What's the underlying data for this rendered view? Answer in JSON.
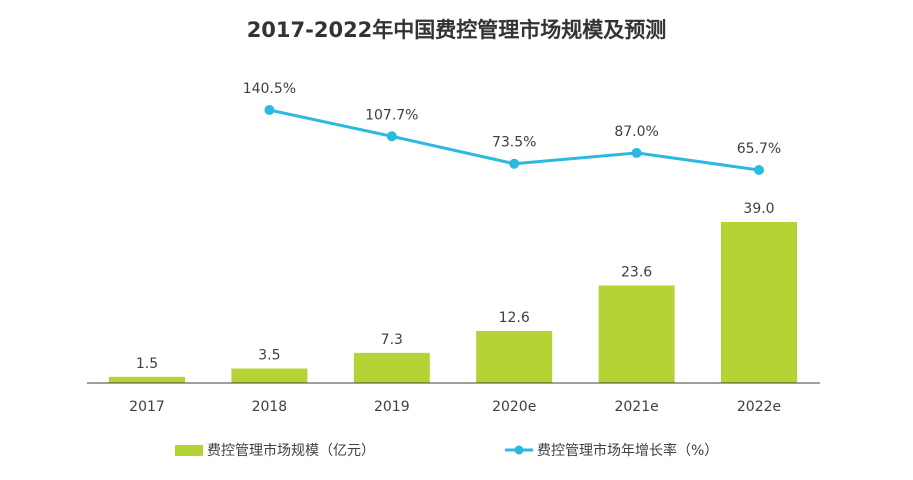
{
  "chart_data": {
    "type": "bar+line",
    "title": "2017-2022年中国费控管理市场规模及预测",
    "categories": [
      "2017",
      "2018",
      "2019",
      "2020e",
      "2021e",
      "2022e"
    ],
    "series": [
      {
        "name": "费控管理市场规模（亿元）",
        "type": "bar",
        "values": [
          1.5,
          3.5,
          7.3,
          12.6,
          23.6,
          39.0
        ],
        "labels": [
          "1.5",
          "3.5",
          "7.3",
          "12.6",
          "23.6",
          "39.0"
        ],
        "color": "#b4d334"
      },
      {
        "name": "费控管理市场年增长率（%）",
        "type": "line",
        "values": [
          null,
          140.5,
          107.7,
          73.5,
          87.0,
          65.7
        ],
        "labels": [
          "",
          "140.5%",
          "107.7%",
          "73.5%",
          "87.0%",
          "65.7%"
        ],
        "color": "#2cb8e0"
      }
    ],
    "grid": false,
    "legend": "bottom"
  }
}
